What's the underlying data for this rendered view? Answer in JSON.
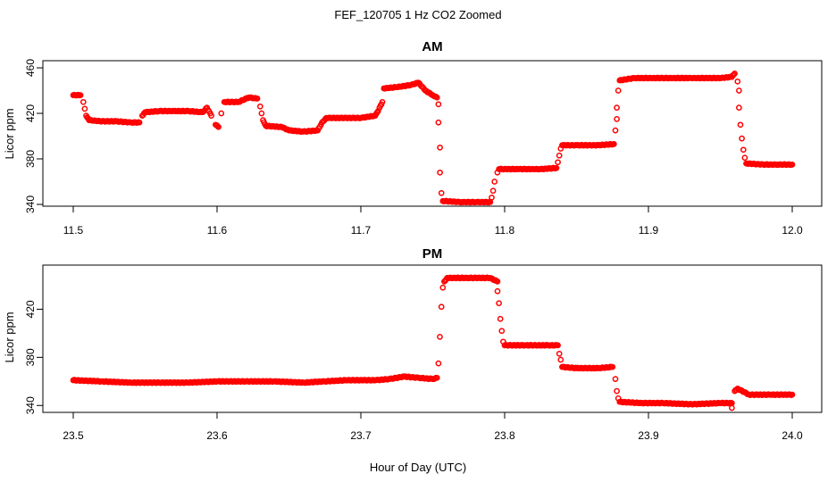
{
  "chart_data": {
    "title": "FEF_120705  1 Hz CO2 Zoomed",
    "xlabel": "Hour of Day (UTC)",
    "panels": [
      {
        "type": "scatter",
        "title": "AM",
        "ylabel": "Licor ppm",
        "xlim": [
          11.5,
          12.0
        ],
        "ylim": [
          340,
          460
        ],
        "xticks": [
          "11.5",
          "11.6",
          "11.7",
          "11.8",
          "11.9",
          "12.0"
        ],
        "yticks": [
          "340",
          "380",
          "420",
          "460"
        ],
        "color": "#ff0000",
        "points": [
          [
            11.5,
            436
          ],
          [
            11.505,
            436
          ],
          [
            11.507,
            430
          ],
          [
            11.508,
            424
          ],
          [
            11.509,
            418
          ],
          [
            11.511,
            414
          ],
          [
            11.52,
            413
          ],
          [
            11.53,
            413
          ],
          [
            11.54,
            412
          ],
          [
            11.546,
            412
          ],
          [
            11.548,
            418
          ],
          [
            11.55,
            421
          ],
          [
            11.56,
            422
          ],
          [
            11.57,
            422
          ],
          [
            11.58,
            422
          ],
          [
            11.59,
            421
          ],
          [
            11.593,
            425
          ],
          [
            11.596,
            418
          ],
          [
            11.599,
            410
          ],
          [
            11.601,
            408
          ],
          [
            11.603,
            420
          ],
          [
            11.605,
            430
          ],
          [
            11.615,
            430
          ],
          [
            11.622,
            434
          ],
          [
            11.628,
            433
          ],
          [
            11.63,
            426
          ],
          [
            11.631,
            420
          ],
          [
            11.632,
            414
          ],
          [
            11.634,
            409
          ],
          [
            11.645,
            408
          ],
          [
            11.65,
            405
          ],
          [
            11.66,
            404
          ],
          [
            11.67,
            405
          ],
          [
            11.673,
            412
          ],
          [
            11.676,
            416
          ],
          [
            11.69,
            416
          ],
          [
            11.7,
            416
          ],
          [
            11.71,
            418
          ],
          [
            11.712,
            422
          ],
          [
            11.713,
            425
          ],
          [
            11.715,
            430
          ],
          [
            11.716,
            442
          ],
          [
            11.725,
            443
          ],
          [
            11.735,
            445
          ],
          [
            11.74,
            447
          ],
          [
            11.745,
            440
          ],
          [
            11.75,
            436
          ],
          [
            11.753,
            434
          ],
          [
            11.754,
            428
          ],
          [
            11.754,
            412
          ],
          [
            11.755,
            390
          ],
          [
            11.755,
            368
          ],
          [
            11.756,
            350
          ],
          [
            11.757,
            343
          ],
          [
            11.77,
            342
          ],
          [
            11.78,
            342
          ],
          [
            11.79,
            342
          ],
          [
            11.791,
            346
          ],
          [
            11.792,
            352
          ],
          [
            11.793,
            360
          ],
          [
            11.795,
            368
          ],
          [
            11.796,
            371
          ],
          [
            11.81,
            371
          ],
          [
            11.825,
            371
          ],
          [
            11.836,
            372
          ],
          [
            11.837,
            377
          ],
          [
            11.838,
            383
          ],
          [
            11.839,
            389
          ],
          [
            11.84,
            392
          ],
          [
            11.85,
            392
          ],
          [
            11.865,
            392
          ],
          [
            11.876,
            393
          ],
          [
            11.877,
            405
          ],
          [
            11.878,
            415
          ],
          [
            11.878,
            425
          ],
          [
            11.879,
            440
          ],
          [
            11.88,
            449
          ],
          [
            11.89,
            451
          ],
          [
            11.91,
            451
          ],
          [
            11.93,
            451
          ],
          [
            11.95,
            451
          ],
          [
            11.958,
            452
          ],
          [
            11.96,
            455
          ],
          [
            11.962,
            448
          ],
          [
            11.963,
            440
          ],
          [
            11.963,
            425
          ],
          [
            11.964,
            410
          ],
          [
            11.965,
            398
          ],
          [
            11.966,
            388
          ],
          [
            11.967,
            381
          ],
          [
            11.968,
            376
          ],
          [
            11.98,
            375
          ],
          [
            11.99,
            375
          ],
          [
            12.0,
            375
          ]
        ]
      },
      {
        "type": "scatter",
        "title": "PM",
        "ylabel": "Licor ppm",
        "xlim": [
          23.5,
          24.0
        ],
        "ylim": [
          335,
          450
        ],
        "xticks": [
          "23.5",
          "23.6",
          "23.7",
          "23.8",
          "23.9",
          "24.0"
        ],
        "yticks": [
          "340",
          "380",
          "420"
        ],
        "color": "#ff0000",
        "points": [
          [
            23.5,
            361
          ],
          [
            23.52,
            360
          ],
          [
            23.54,
            359
          ],
          [
            23.56,
            359
          ],
          [
            23.58,
            359
          ],
          [
            23.6,
            360
          ],
          [
            23.62,
            360
          ],
          [
            23.64,
            360
          ],
          [
            23.66,
            359
          ],
          [
            23.675,
            360
          ],
          [
            23.69,
            361
          ],
          [
            23.71,
            361
          ],
          [
            23.72,
            362
          ],
          [
            23.73,
            364
          ],
          [
            23.74,
            363
          ],
          [
            23.75,
            362
          ],
          [
            23.753,
            363
          ],
          [
            23.754,
            375
          ],
          [
            23.755,
            397
          ],
          [
            23.756,
            422
          ],
          [
            23.757,
            438
          ],
          [
            23.758,
            443
          ],
          [
            23.76,
            446
          ],
          [
            23.775,
            446
          ],
          [
            23.79,
            446
          ],
          [
            23.795,
            443
          ],
          [
            23.795,
            435
          ],
          [
            23.796,
            425
          ],
          [
            23.797,
            412
          ],
          [
            23.798,
            402
          ],
          [
            23.799,
            393
          ],
          [
            23.8,
            390
          ],
          [
            23.815,
            390
          ],
          [
            23.83,
            390
          ],
          [
            23.837,
            390
          ],
          [
            23.838,
            383
          ],
          [
            23.839,
            378
          ],
          [
            23.84,
            372
          ],
          [
            23.85,
            371
          ],
          [
            23.865,
            371
          ],
          [
            23.875,
            372
          ],
          [
            23.877,
            362
          ],
          [
            23.878,
            352
          ],
          [
            23.879,
            346
          ],
          [
            23.88,
            343
          ],
          [
            23.895,
            342
          ],
          [
            23.91,
            342
          ],
          [
            23.93,
            341
          ],
          [
            23.95,
            342
          ],
          [
            23.958,
            342
          ],
          [
            23.958,
            338
          ],
          [
            23.96,
            352
          ],
          [
            23.962,
            354
          ],
          [
            23.97,
            349
          ],
          [
            23.985,
            349
          ],
          [
            24.0,
            349
          ]
        ]
      }
    ]
  }
}
